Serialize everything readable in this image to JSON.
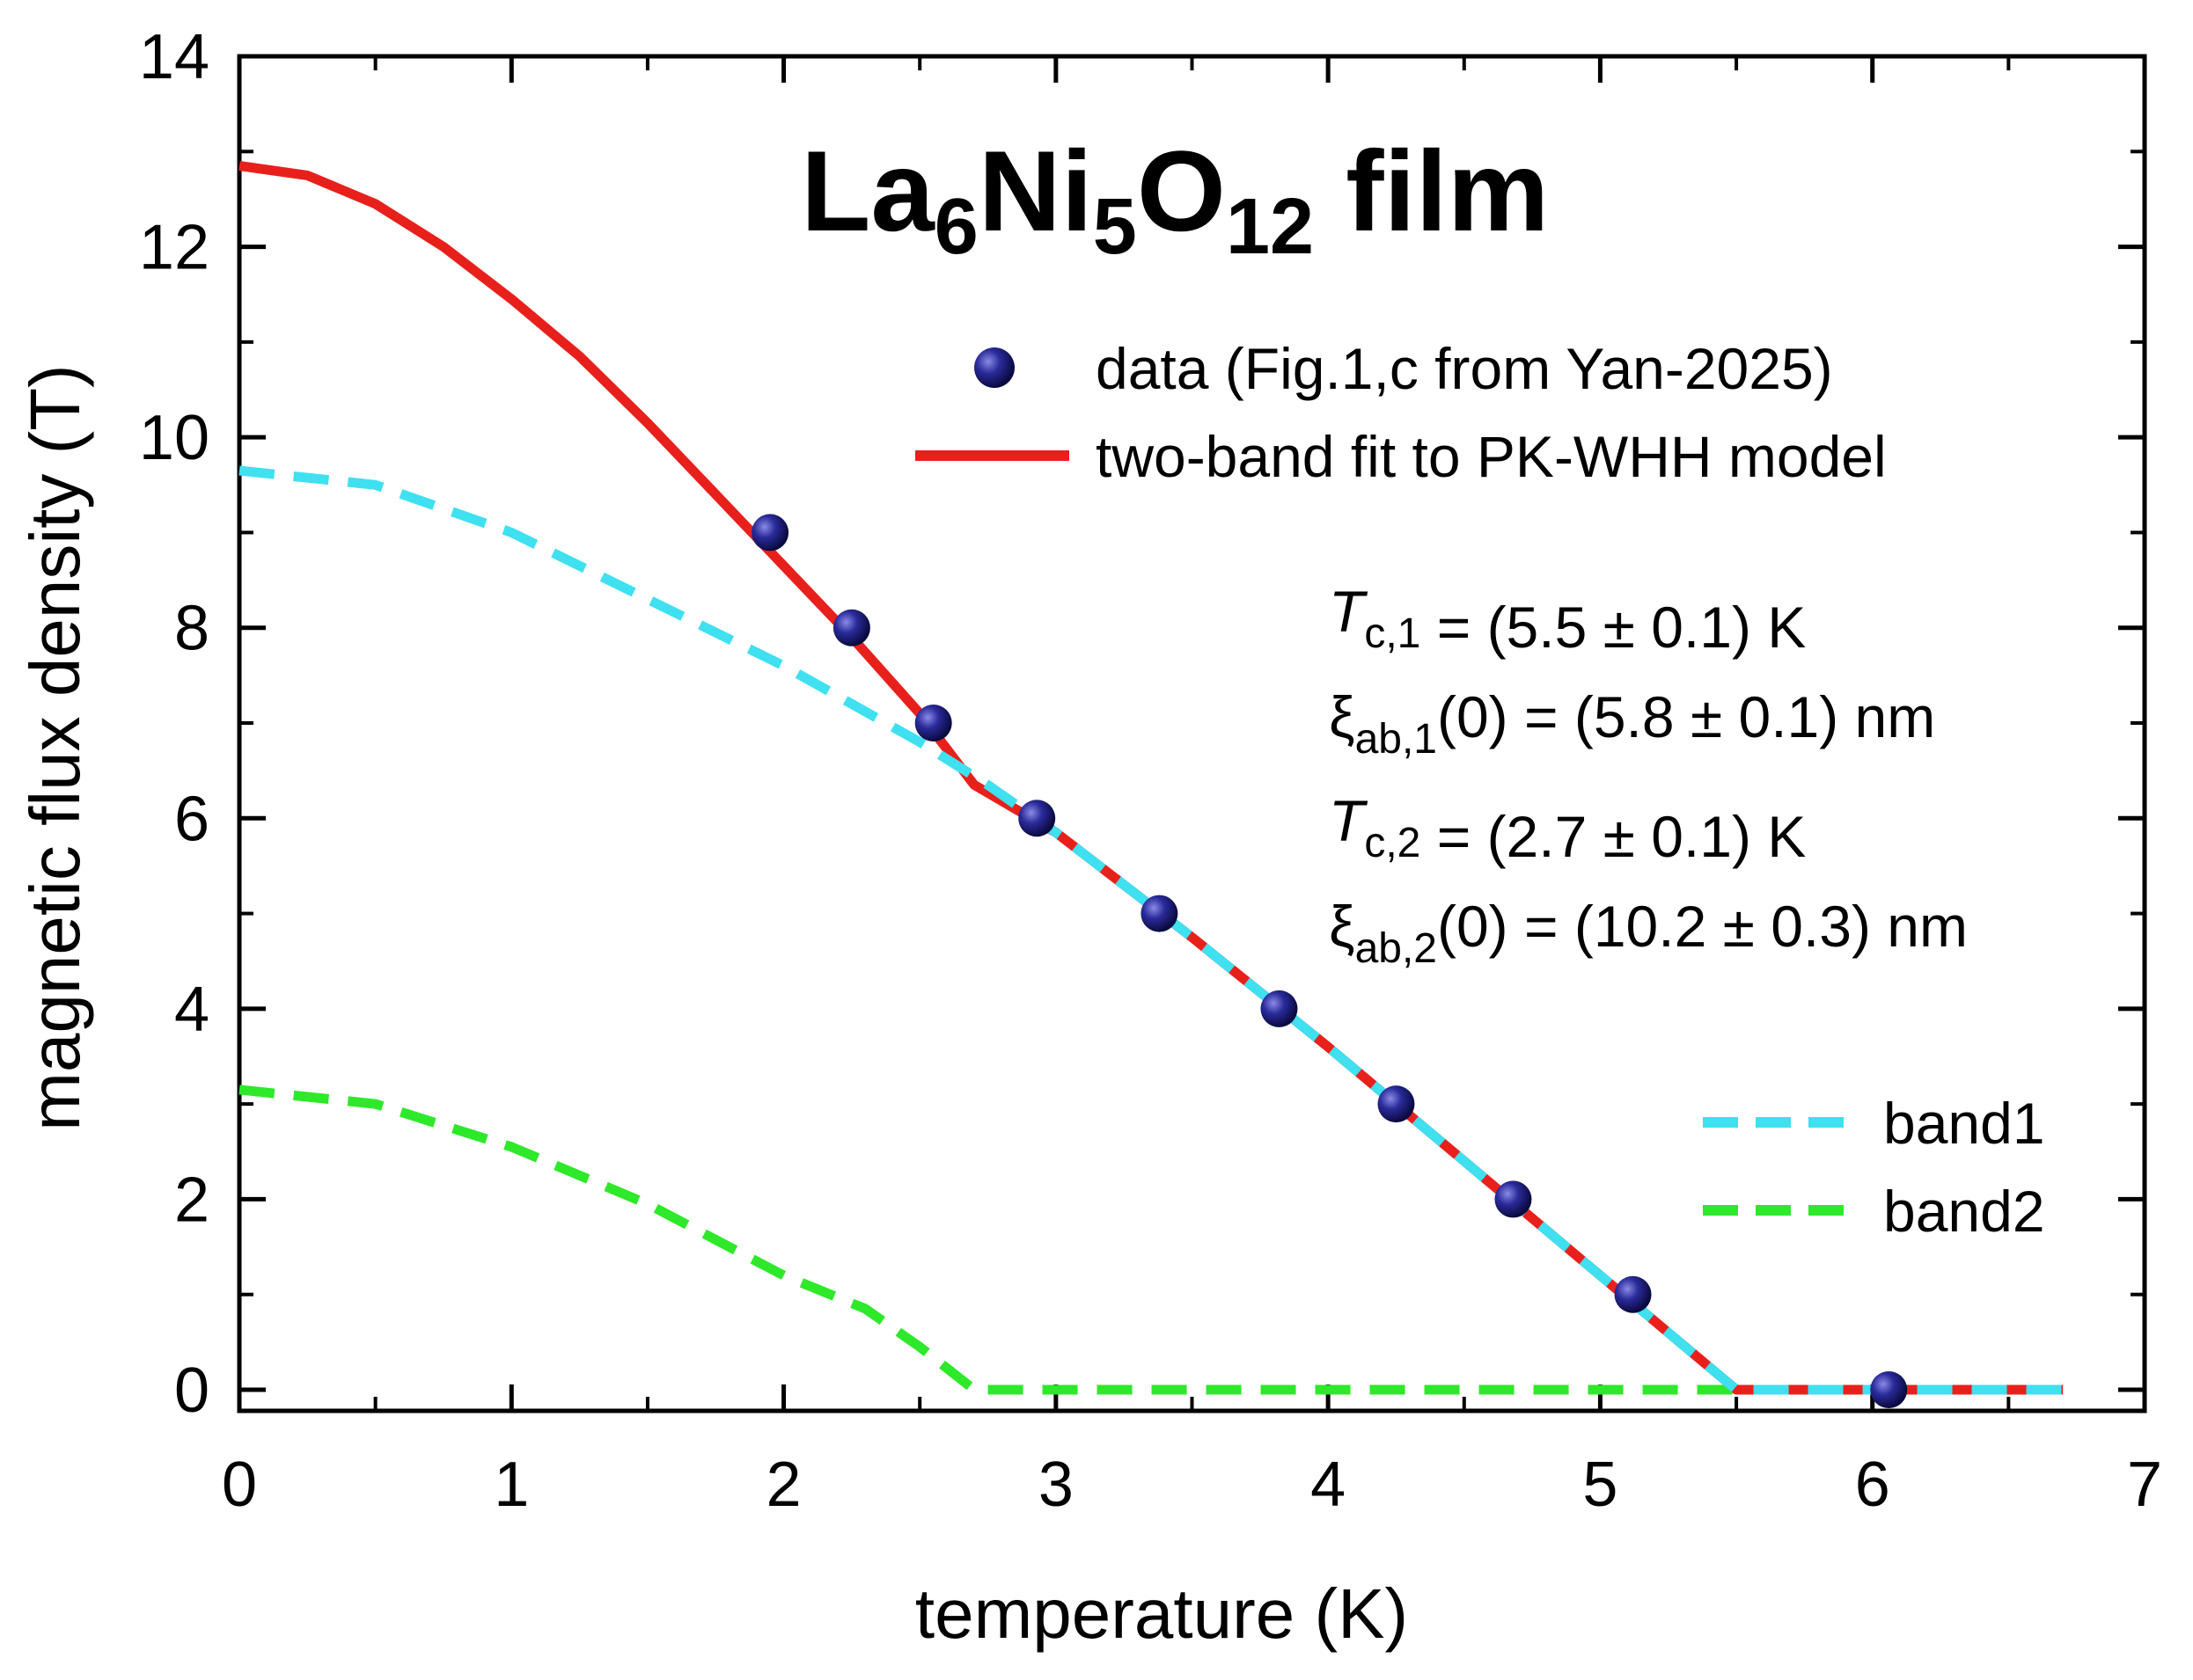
{
  "chart_data": {
    "type": "line",
    "title_parts": {
      "base1": "La",
      "sub1": "6",
      "base2": "Ni",
      "sub2": "5",
      "base3": "O",
      "sub3": "12",
      "tail": " film"
    },
    "xlabel": "temperature (K)",
    "ylabel": "magnetic flux density (T)",
    "xlim": [
      0,
      7
    ],
    "ylim": [
      0,
      14
    ],
    "xticks": [
      "0",
      "1",
      "2",
      "3",
      "4",
      "5",
      "6",
      "7"
    ],
    "yticks": [
      "0",
      "2",
      "4",
      "6",
      "8",
      "10",
      "12",
      "14"
    ],
    "grid": false,
    "legend_position": "upper-right and lower-right",
    "data_points": {
      "name": "data (Fig.1,c from Yan-2025)",
      "color": "#1a1a7a",
      "x": [
        1.95,
        2.25,
        2.55,
        2.93,
        3.38,
        3.82,
        4.25,
        4.68,
        5.12,
        6.06
      ],
      "y": [
        9.0,
        8.0,
        7.0,
        6.0,
        5.0,
        4.0,
        3.0,
        2.0,
        1.0,
        0.0
      ]
    },
    "series": [
      {
        "name": "two-band fit to PK-WHH model",
        "color": "#e8201c",
        "style": "solid",
        "x": [
          0,
          0.25,
          0.5,
          0.75,
          1.0,
          1.25,
          1.5,
          1.75,
          2.0,
          2.25,
          2.5,
          2.7,
          3.0,
          3.5,
          4.0,
          4.5,
          5.0,
          5.5,
          6.0,
          6.5,
          6.7
        ],
        "y": [
          12.85,
          12.75,
          12.45,
          12.0,
          11.45,
          10.85,
          10.15,
          9.4,
          8.65,
          7.9,
          7.1,
          6.35,
          5.85,
          4.75,
          3.6,
          2.4,
          1.2,
          0.0,
          0.0,
          0.0,
          0.0
        ]
      },
      {
        "name": "band1",
        "color": "#3fe0f0",
        "style": "dashed",
        "x": [
          0,
          0.5,
          1.0,
          1.5,
          2.0,
          2.5,
          2.75,
          3.0,
          3.5,
          4.0,
          4.5,
          5.0,
          5.5,
          6.0,
          6.5,
          6.7
        ],
        "y": [
          9.65,
          9.5,
          9.0,
          8.3,
          7.6,
          6.8,
          6.35,
          5.85,
          4.75,
          3.6,
          2.4,
          1.2,
          0.0,
          0.0,
          0.0,
          0.0
        ]
      },
      {
        "name": "band2",
        "color": "#2ee82a",
        "style": "dashed",
        "x": [
          0,
          0.5,
          1.0,
          1.5,
          2.0,
          2.3,
          2.5,
          2.7,
          3.0,
          4.0,
          5.0,
          6.0,
          6.7
        ],
        "y": [
          3.15,
          3.0,
          2.55,
          1.95,
          1.2,
          0.85,
          0.45,
          0.0,
          0.0,
          0.0,
          0.0,
          0.0,
          0.0
        ]
      }
    ],
    "parameters": [
      {
        "sym": "T",
        "sub": "c,1",
        "suffix": "",
        "value": " = (5.5 ± 0.1) K"
      },
      {
        "sym": "ξ",
        "sub": "ab,1",
        "suffix": "(0)",
        "value": " = (5.8 ± 0.1) nm"
      },
      {
        "sym": "T",
        "sub": "c,2",
        "suffix": "",
        "value": " = (2.7 ± 0.1) K"
      },
      {
        "sym": "ξ",
        "sub": "ab,2",
        "suffix": "(0)",
        "value": " = (10.2 ± 0.3) nm"
      }
    ]
  }
}
